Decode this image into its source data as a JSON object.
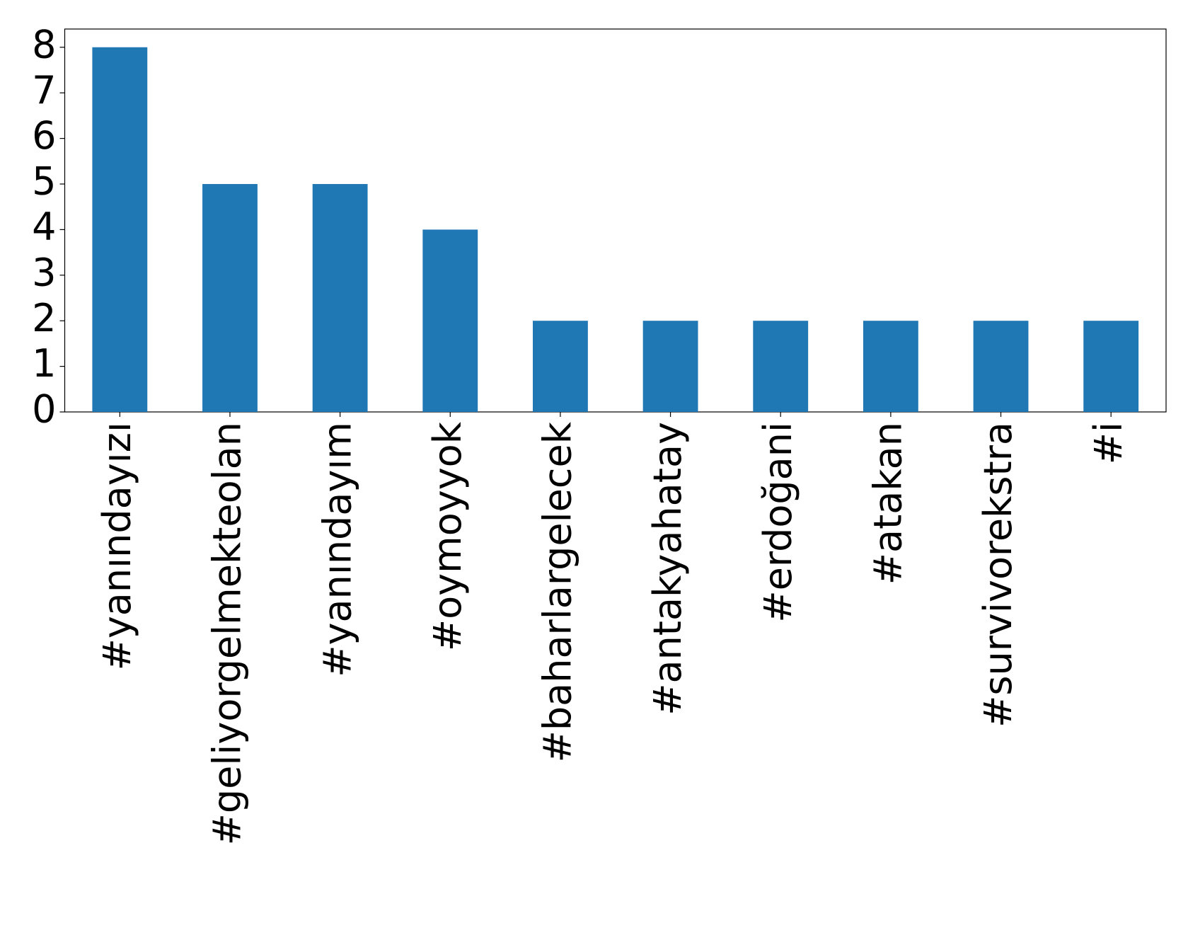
{
  "chart_data": {
    "type": "bar",
    "categories": [
      "#yanındayızı",
      "#geliyorgelmekteolan",
      "#yanındayım",
      "#oymoyyok",
      "#baharlargelecek",
      "#antakyahatay",
      "#erdoğani",
      "#atakan",
      "#survivorekstra",
      "#i"
    ],
    "values": [
      8,
      5,
      5,
      4,
      2,
      2,
      2,
      2,
      2,
      2
    ],
    "color": "#1f77b4",
    "ylim": [
      0,
      8.4
    ],
    "yticks": [
      0,
      1,
      2,
      3,
      4,
      5,
      6,
      7,
      8
    ],
    "grid": false
  }
}
